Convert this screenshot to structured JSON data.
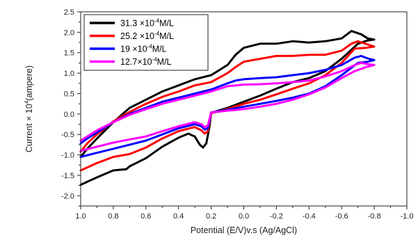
{
  "chart_data": {
    "type": "line",
    "title": "",
    "xlabel": "Potential (E/V)v.s (Ag/AgCl)",
    "ylabel_parts": {
      "before": "Current × 10",
      "superscript": "4",
      "after": "(ampere)"
    },
    "xlim": [
      1.0,
      -1.0
    ],
    "ylim": [
      -2.25,
      2.5
    ],
    "x_axis_reversed": true,
    "x_ticks": [
      1.0,
      0.8,
      0.6,
      0.4,
      0.2,
      0.0,
      -0.2,
      -0.4,
      -0.6,
      -0.8,
      -1.0
    ],
    "x_tick_labels": [
      "1.0",
      "0.8",
      "0.6",
      "0.4",
      "0.2",
      "0.0",
      "-0.2",
      "-0.4",
      "-0.6",
      "-0.8",
      "-1.0"
    ],
    "y_ticks": [
      -2.0,
      -1.5,
      -1.0,
      -0.5,
      0.0,
      0.5,
      1.0,
      1.5,
      2.0,
      2.5
    ],
    "y_tick_labels": [
      "-2.0",
      "-1.5",
      "-1.0",
      "-0.5",
      "0.0",
      "0.5",
      "1.0",
      "1.5",
      "2.0",
      "2.5"
    ],
    "grid": false,
    "legend_position": "top-left",
    "series": [
      {
        "name_parts": {
          "before": "31.3 ×10",
          "superscript": "-4",
          "after": "M/L"
        },
        "color": "#000000",
        "points": [
          [
            1.0,
            -1.73
          ],
          [
            0.9,
            -1.55
          ],
          [
            0.8,
            -1.38
          ],
          [
            0.72,
            -1.35
          ],
          [
            0.7,
            -1.28
          ],
          [
            0.6,
            -1.08
          ],
          [
            0.5,
            -0.8
          ],
          [
            0.4,
            -0.58
          ],
          [
            0.34,
            -0.48
          ],
          [
            0.3,
            -0.55
          ],
          [
            0.27,
            -0.75
          ],
          [
            0.25,
            -0.82
          ],
          [
            0.23,
            -0.72
          ],
          [
            0.21,
            -0.3
          ],
          [
            0.2,
            0.03
          ],
          [
            0.1,
            0.15
          ],
          [
            0.0,
            0.3
          ],
          [
            -0.1,
            0.45
          ],
          [
            -0.2,
            0.62
          ],
          [
            -0.3,
            0.78
          ],
          [
            -0.4,
            0.88
          ],
          [
            -0.5,
            1.05
          ],
          [
            -0.6,
            1.35
          ],
          [
            -0.7,
            1.72
          ],
          [
            -0.76,
            1.8
          ],
          [
            -0.8,
            1.82
          ],
          [
            -0.76,
            1.85
          ],
          [
            -0.72,
            1.95
          ],
          [
            -0.66,
            2.03
          ],
          [
            -0.6,
            1.85
          ],
          [
            -0.5,
            1.78
          ],
          [
            -0.4,
            1.75
          ],
          [
            -0.3,
            1.78
          ],
          [
            -0.2,
            1.72
          ],
          [
            -0.1,
            1.72
          ],
          [
            0.0,
            1.62
          ],
          [
            0.05,
            1.45
          ],
          [
            0.1,
            1.2
          ],
          [
            0.2,
            0.95
          ],
          [
            0.3,
            0.85
          ],
          [
            0.4,
            0.7
          ],
          [
            0.5,
            0.55
          ],
          [
            0.6,
            0.35
          ],
          [
            0.7,
            0.15
          ],
          [
            0.8,
            -0.2
          ],
          [
            0.9,
            -0.6
          ],
          [
            0.96,
            -0.85
          ],
          [
            1.0,
            -1.05
          ]
        ]
      },
      {
        "name_parts": {
          "before": "25.2 ×10",
          "superscript": "-4",
          "after": "M/L"
        },
        "color": "#ff0000",
        "points": [
          [
            1.0,
            -1.38
          ],
          [
            0.9,
            -1.2
          ],
          [
            0.8,
            -1.05
          ],
          [
            0.7,
            -0.98
          ],
          [
            0.6,
            -0.82
          ],
          [
            0.5,
            -0.6
          ],
          [
            0.4,
            -0.42
          ],
          [
            0.3,
            -0.32
          ],
          [
            0.26,
            -0.4
          ],
          [
            0.24,
            -0.48
          ],
          [
            0.22,
            -0.42
          ],
          [
            0.2,
            0.02
          ],
          [
            0.1,
            0.12
          ],
          [
            0.0,
            0.25
          ],
          [
            -0.1,
            0.35
          ],
          [
            -0.2,
            0.48
          ],
          [
            -0.3,
            0.62
          ],
          [
            -0.4,
            0.75
          ],
          [
            -0.5,
            0.95
          ],
          [
            -0.6,
            1.25
          ],
          [
            -0.68,
            1.6
          ],
          [
            -0.75,
            1.62
          ],
          [
            -0.8,
            1.65
          ],
          [
            -0.76,
            1.7
          ],
          [
            -0.7,
            1.78
          ],
          [
            -0.66,
            1.72
          ],
          [
            -0.6,
            1.55
          ],
          [
            -0.5,
            1.45
          ],
          [
            -0.4,
            1.45
          ],
          [
            -0.3,
            1.42
          ],
          [
            -0.2,
            1.42
          ],
          [
            -0.1,
            1.35
          ],
          [
            0.0,
            1.28
          ],
          [
            0.05,
            1.15
          ],
          [
            0.1,
            1.0
          ],
          [
            0.2,
            0.78
          ],
          [
            0.3,
            0.7
          ],
          [
            0.4,
            0.55
          ],
          [
            0.5,
            0.42
          ],
          [
            0.6,
            0.25
          ],
          [
            0.7,
            0.05
          ],
          [
            0.8,
            -0.18
          ],
          [
            0.9,
            -0.5
          ],
          [
            0.96,
            -0.72
          ],
          [
            1.0,
            -0.92
          ]
        ]
      },
      {
        "name_parts": {
          "before": "19 ×10",
          "superscript": "-4",
          "after": "M/L"
        },
        "color": "#0000ff",
        "points": [
          [
            1.0,
            -1.05
          ],
          [
            0.9,
            -0.95
          ],
          [
            0.8,
            -0.85
          ],
          [
            0.7,
            -0.75
          ],
          [
            0.6,
            -0.65
          ],
          [
            0.5,
            -0.5
          ],
          [
            0.4,
            -0.35
          ],
          [
            0.3,
            -0.25
          ],
          [
            0.26,
            -0.3
          ],
          [
            0.24,
            -0.38
          ],
          [
            0.22,
            -0.35
          ],
          [
            0.2,
            0.04
          ],
          [
            0.1,
            0.1
          ],
          [
            0.0,
            0.18
          ],
          [
            -0.1,
            0.25
          ],
          [
            -0.2,
            0.32
          ],
          [
            -0.3,
            0.4
          ],
          [
            -0.4,
            0.5
          ],
          [
            -0.5,
            0.68
          ],
          [
            -0.6,
            0.95
          ],
          [
            -0.7,
            1.25
          ],
          [
            -0.76,
            1.28
          ],
          [
            -0.8,
            1.32
          ],
          [
            -0.76,
            1.36
          ],
          [
            -0.72,
            1.42
          ],
          [
            -0.68,
            1.38
          ],
          [
            -0.6,
            1.2
          ],
          [
            -0.5,
            1.08
          ],
          [
            -0.4,
            1.0
          ],
          [
            -0.3,
            0.95
          ],
          [
            -0.2,
            0.9
          ],
          [
            -0.1,
            0.88
          ],
          [
            0.0,
            0.85
          ],
          [
            0.05,
            0.82
          ],
          [
            0.1,
            0.75
          ],
          [
            0.2,
            0.6
          ],
          [
            0.3,
            0.5
          ],
          [
            0.4,
            0.4
          ],
          [
            0.5,
            0.3
          ],
          [
            0.6,
            0.15
          ],
          [
            0.7,
            0.0
          ],
          [
            0.8,
            -0.2
          ],
          [
            0.9,
            -0.45
          ],
          [
            0.96,
            -0.6
          ],
          [
            1.0,
            -0.72
          ]
        ]
      },
      {
        "name_parts": {
          "before": "12.7×10",
          "superscript": "-4",
          "after": "M/L"
        },
        "color": "#ff00ff",
        "points": [
          [
            1.0,
            -0.9
          ],
          [
            0.9,
            -0.8
          ],
          [
            0.8,
            -0.7
          ],
          [
            0.7,
            -0.62
          ],
          [
            0.6,
            -0.55
          ],
          [
            0.5,
            -0.42
          ],
          [
            0.4,
            -0.3
          ],
          [
            0.3,
            -0.2
          ],
          [
            0.26,
            -0.25
          ],
          [
            0.24,
            -0.32
          ],
          [
            0.22,
            -0.28
          ],
          [
            0.2,
            0.04
          ],
          [
            0.1,
            0.08
          ],
          [
            0.0,
            0.12
          ],
          [
            -0.1,
            0.18
          ],
          [
            -0.2,
            0.25
          ],
          [
            -0.3,
            0.35
          ],
          [
            -0.4,
            0.48
          ],
          [
            -0.5,
            0.65
          ],
          [
            -0.6,
            0.88
          ],
          [
            -0.68,
            1.05
          ],
          [
            -0.75,
            1.15
          ],
          [
            -0.8,
            1.2
          ],
          [
            -0.76,
            1.22
          ],
          [
            -0.72,
            1.25
          ],
          [
            -0.68,
            1.2
          ],
          [
            -0.6,
            1.05
          ],
          [
            -0.5,
            0.92
          ],
          [
            -0.4,
            0.82
          ],
          [
            -0.3,
            0.78
          ],
          [
            -0.2,
            0.75
          ],
          [
            -0.1,
            0.73
          ],
          [
            0.0,
            0.72
          ],
          [
            0.1,
            0.68
          ],
          [
            0.2,
            0.55
          ],
          [
            0.3,
            0.45
          ],
          [
            0.4,
            0.35
          ],
          [
            0.5,
            0.25
          ],
          [
            0.6,
            0.12
          ],
          [
            0.7,
            -0.02
          ],
          [
            0.8,
            -0.2
          ],
          [
            0.9,
            -0.4
          ],
          [
            0.96,
            -0.55
          ],
          [
            1.0,
            -0.65
          ]
        ]
      }
    ]
  }
}
